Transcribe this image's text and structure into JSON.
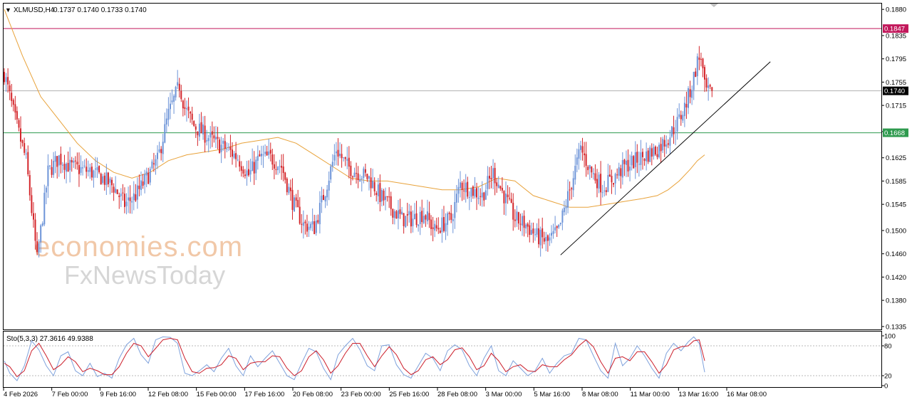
{
  "header": {
    "symbol": "XLMUSD,H4",
    "ohlc": "0.1737 0.1740 0.1733 0.1740",
    "triangle": "▼"
  },
  "watermark": {
    "line1": "economies.com",
    "line2": "FxNewsToday"
  },
  "colors": {
    "bull": "#6d94d8",
    "bear": "#d4262b",
    "ma": "#e8a23a",
    "resistance": "#c2185b",
    "support": "#2e9a4e",
    "current": "#b0b0b0",
    "trend": "#000000",
    "stoch_main": "#7fa2dc",
    "stoch_signal": "#cc1f2b"
  },
  "chart_data": {
    "type": "candlestick",
    "symbol": "XLMUSD",
    "timeframe": "H4",
    "ylim": [
      0.133,
      0.189
    ],
    "y_ticks": [
      0.188,
      0.1835,
      0.1795,
      0.1755,
      0.1715,
      0.167,
      0.1625,
      0.1585,
      0.1545,
      0.15,
      0.146,
      0.142,
      0.138,
      0.1335
    ],
    "x_tick_labels": [
      "4 Feb 2026",
      "7 Feb 00:00",
      "9 Feb 16:00",
      "12 Feb 08:00",
      "15 Feb 00:00",
      "17 Feb 16:00",
      "20 Feb 08:00",
      "23 Feb 00:00",
      "25 Feb 16:00",
      "28 Feb 08:00",
      "3 Mar 00:00",
      "5 Mar 16:00",
      "8 Mar 08:00",
      "11 Mar 00:00",
      "13 Mar 16:00",
      "16 Mar 08:00"
    ],
    "candle_count": 246,
    "close_path": [
      [
        0,
        0.177
      ],
      [
        6,
        0.169
      ],
      [
        12,
        0.162
      ],
      [
        18,
        0.145
      ],
      [
        24,
        0.16
      ],
      [
        30,
        0.1625
      ],
      [
        36,
        0.161
      ],
      [
        42,
        0.1605
      ],
      [
        48,
        0.16
      ],
      [
        54,
        0.159
      ],
      [
        60,
        0.1575
      ],
      [
        66,
        0.1545
      ],
      [
        72,
        0.156
      ],
      [
        78,
        0.159
      ],
      [
        84,
        0.162
      ],
      [
        90,
        0.17
      ],
      [
        96,
        0.175
      ],
      [
        99,
        0.171
      ],
      [
        104,
        0.168
      ],
      [
        110,
        0.1665
      ],
      [
        116,
        0.165
      ],
      [
        122,
        0.164
      ],
      [
        128,
        0.1625
      ],
      [
        134,
        0.1595
      ],
      [
        140,
        0.1625
      ],
      [
        146,
        0.1625
      ],
      [
        152,
        0.161
      ],
      [
        158,
        0.155
      ],
      [
        164,
        0.151
      ],
      [
        170,
        0.1505
      ],
      [
        176,
        0.157
      ],
      [
        182,
        0.164
      ],
      [
        188,
        0.161
      ],
      [
        194,
        0.16
      ],
      [
        200,
        0.159
      ],
      [
        206,
        0.156
      ],
      [
        212,
        0.154
      ],
      [
        218,
        0.152
      ],
      [
        224,
        0.152
      ],
      [
        230,
        0.153
      ],
      [
        236,
        0.15
      ],
      [
        240,
        0.151
      ],
      [
        245,
        0.152
      ],
      [
        250,
        0.158
      ],
      [
        256,
        0.157
      ],
      [
        262,
        0.156
      ],
      [
        268,
        0.16
      ],
      [
        274,
        0.156
      ],
      [
        280,
        0.152
      ],
      [
        286,
        0.151
      ],
      [
        292,
        0.149
      ],
      [
        298,
        0.148
      ],
      [
        304,
        0.15
      ],
      [
        310,
        0.157
      ],
      [
        316,
        0.164
      ],
      [
        322,
        0.16
      ],
      [
        328,
        0.1575
      ],
      [
        334,
        0.159
      ],
      [
        340,
        0.161
      ],
      [
        346,
        0.162
      ],
      [
        352,
        0.163
      ],
      [
        358,
        0.164
      ],
      [
        364,
        0.166
      ],
      [
        370,
        0.169
      ],
      [
        374,
        0.172
      ],
      [
        377,
        0.175
      ],
      [
        380,
        0.179
      ],
      [
        382,
        0.18
      ],
      [
        384,
        0.1745
      ],
      [
        386,
        0.1735
      ],
      [
        388,
        0.174
      ]
    ],
    "moving_average": [
      [
        0,
        0.188
      ],
      [
        10,
        0.18
      ],
      [
        20,
        0.173
      ],
      [
        30,
        0.169
      ],
      [
        40,
        0.165
      ],
      [
        50,
        0.162
      ],
      [
        60,
        0.16
      ],
      [
        70,
        0.159
      ],
      [
        80,
        0.16
      ],
      [
        90,
        0.162
      ],
      [
        100,
        0.163
      ],
      [
        110,
        0.1635
      ],
      [
        120,
        0.164
      ],
      [
        130,
        0.165
      ],
      [
        140,
        0.1655
      ],
      [
        150,
        0.166
      ],
      [
        160,
        0.165
      ],
      [
        170,
        0.163
      ],
      [
        180,
        0.161
      ],
      [
        190,
        0.159
      ],
      [
        200,
        0.1585
      ],
      [
        210,
        0.1585
      ],
      [
        220,
        0.158
      ],
      [
        230,
        0.1575
      ],
      [
        240,
        0.157
      ],
      [
        250,
        0.157
      ],
      [
        260,
        0.1575
      ],
      [
        270,
        0.159
      ],
      [
        280,
        0.1585
      ],
      [
        290,
        0.156
      ],
      [
        300,
        0.155
      ],
      [
        310,
        0.154
      ],
      [
        320,
        0.154
      ],
      [
        330,
        0.1545
      ],
      [
        340,
        0.155
      ],
      [
        350,
        0.1555
      ],
      [
        358,
        0.156
      ],
      [
        364,
        0.157
      ],
      [
        370,
        0.1585
      ],
      [
        376,
        0.1605
      ],
      [
        380,
        0.162
      ],
      [
        384,
        0.163
      ]
    ],
    "resistance_level": "0.1847",
    "support_level": "0.1668",
    "current_price": "0.1740",
    "trendline": {
      "start": [
        305,
        0.1458
      ],
      "end": [
        420,
        0.179
      ]
    },
    "stochastic": {
      "label": "Sto(5,3,3) 27.3616 49.9388",
      "ylim": [
        0,
        100
      ],
      "ticks": [
        "100",
        "80",
        "20",
        "0"
      ],
      "levels": [
        80,
        20
      ],
      "main": [
        [
          0,
          50
        ],
        [
          3,
          25
        ],
        [
          7,
          10
        ],
        [
          11,
          40
        ],
        [
          15,
          90
        ],
        [
          19,
          72
        ],
        [
          23,
          40
        ],
        [
          27,
          20
        ],
        [
          31,
          60
        ],
        [
          35,
          68
        ],
        [
          39,
          30
        ],
        [
          43,
          20
        ],
        [
          47,
          45
        ],
        [
          51,
          18
        ],
        [
          55,
          25
        ],
        [
          59,
          15
        ],
        [
          63,
          55
        ],
        [
          67,
          82
        ],
        [
          71,
          95
        ],
        [
          75,
          62
        ],
        [
          79,
          45
        ],
        [
          83,
          92
        ],
        [
          87,
          98
        ],
        [
          91,
          97
        ],
        [
          95,
          85
        ],
        [
          99,
          25
        ],
        [
          103,
          20
        ],
        [
          107,
          30
        ],
        [
          111,
          42
        ],
        [
          115,
          28
        ],
        [
          119,
          55
        ],
        [
          123,
          75
        ],
        [
          127,
          40
        ],
        [
          131,
          20
        ],
        [
          135,
          60
        ],
        [
          139,
          38
        ],
        [
          143,
          55
        ],
        [
          147,
          70
        ],
        [
          151,
          45
        ],
        [
          155,
          20
        ],
        [
          159,
          12
        ],
        [
          163,
          45
        ],
        [
          167,
          75
        ],
        [
          171,
          68
        ],
        [
          175,
          35
        ],
        [
          179,
          12
        ],
        [
          183,
          62
        ],
        [
          187,
          80
        ],
        [
          191,
          95
        ],
        [
          195,
          72
        ],
        [
          199,
          40
        ],
        [
          203,
          30
        ],
        [
          207,
          80
        ],
        [
          211,
          82
        ],
        [
          215,
          42
        ],
        [
          219,
          22
        ],
        [
          223,
          15
        ],
        [
          227,
          40
        ],
        [
          231,
          65
        ],
        [
          235,
          55
        ],
        [
          239,
          30
        ],
        [
          243,
          70
        ],
        [
          247,
          82
        ],
        [
          251,
          72
        ],
        [
          255,
          40
        ],
        [
          259,
          20
        ],
        [
          263,
          55
        ],
        [
          267,
          80
        ],
        [
          271,
          30
        ],
        [
          275,
          20
        ],
        [
          279,
          50
        ],
        [
          283,
          35
        ],
        [
          287,
          20
        ],
        [
          291,
          30
        ],
        [
          295,
          55
        ],
        [
          299,
          25
        ],
        [
          303,
          45
        ],
        [
          307,
          60
        ],
        [
          311,
          65
        ],
        [
          315,
          95
        ],
        [
          319,
          92
        ],
        [
          323,
          60
        ],
        [
          327,
          30
        ],
        [
          331,
          15
        ],
        [
          335,
          85
        ],
        [
          339,
          40
        ],
        [
          343,
          55
        ],
        [
          347,
          80
        ],
        [
          351,
          60
        ],
        [
          355,
          35
        ],
        [
          359,
          15
        ],
        [
          363,
          65
        ],
        [
          367,
          85
        ],
        [
          371,
          70
        ],
        [
          375,
          88
        ],
        [
          378,
          98
        ],
        [
          381,
          85
        ],
        [
          384,
          27
        ]
      ],
      "signal": [
        [
          0,
          45
        ],
        [
          3,
          38
        ],
        [
          7,
          18
        ],
        [
          11,
          30
        ],
        [
          15,
          70
        ],
        [
          19,
          85
        ],
        [
          23,
          60
        ],
        [
          27,
          32
        ],
        [
          31,
          42
        ],
        [
          35,
          58
        ],
        [
          39,
          48
        ],
        [
          43,
          28
        ],
        [
          47,
          35
        ],
        [
          51,
          30
        ],
        [
          55,
          22
        ],
        [
          59,
          22
        ],
        [
          63,
          38
        ],
        [
          67,
          65
        ],
        [
          71,
          85
        ],
        [
          75,
          80
        ],
        [
          79,
          58
        ],
        [
          83,
          75
        ],
        [
          87,
          92
        ],
        [
          91,
          95
        ],
        [
          95,
          92
        ],
        [
          99,
          55
        ],
        [
          103,
          28
        ],
        [
          107,
          25
        ],
        [
          111,
          35
        ],
        [
          115,
          36
        ],
        [
          119,
          42
        ],
        [
          123,
          60
        ],
        [
          127,
          55
        ],
        [
          131,
          32
        ],
        [
          135,
          45
        ],
        [
          139,
          48
        ],
        [
          143,
          48
        ],
        [
          147,
          60
        ],
        [
          151,
          58
        ],
        [
          155,
          35
        ],
        [
          159,
          20
        ],
        [
          163,
          30
        ],
        [
          167,
          58
        ],
        [
          171,
          70
        ],
        [
          175,
          52
        ],
        [
          179,
          25
        ],
        [
          183,
          40
        ],
        [
          187,
          65
        ],
        [
          191,
          85
        ],
        [
          195,
          85
        ],
        [
          199,
          60
        ],
        [
          203,
          38
        ],
        [
          207,
          60
        ],
        [
          211,
          78
        ],
        [
          215,
          62
        ],
        [
          219,
          35
        ],
        [
          223,
          22
        ],
        [
          227,
          30
        ],
        [
          231,
          52
        ],
        [
          235,
          58
        ],
        [
          239,
          42
        ],
        [
          243,
          52
        ],
        [
          247,
          72
        ],
        [
          251,
          76
        ],
        [
          255,
          58
        ],
        [
          259,
          32
        ],
        [
          263,
          40
        ],
        [
          267,
          65
        ],
        [
          271,
          50
        ],
        [
          275,
          28
        ],
        [
          279,
          38
        ],
        [
          283,
          42
        ],
        [
          287,
          30
        ],
        [
          291,
          28
        ],
        [
          295,
          42
        ],
        [
          299,
          38
        ],
        [
          303,
          38
        ],
        [
          307,
          52
        ],
        [
          311,
          62
        ],
        [
          315,
          80
        ],
        [
          319,
          92
        ],
        [
          323,
          78
        ],
        [
          327,
          48
        ],
        [
          331,
          25
        ],
        [
          335,
          55
        ],
        [
          339,
          58
        ],
        [
          343,
          50
        ],
        [
          347,
          68
        ],
        [
          351,
          68
        ],
        [
          355,
          48
        ],
        [
          359,
          25
        ],
        [
          363,
          42
        ],
        [
          367,
          72
        ],
        [
          371,
          78
        ],
        [
          375,
          80
        ],
        [
          378,
          90
        ],
        [
          381,
          92
        ],
        [
          384,
          50
        ]
      ]
    }
  }
}
